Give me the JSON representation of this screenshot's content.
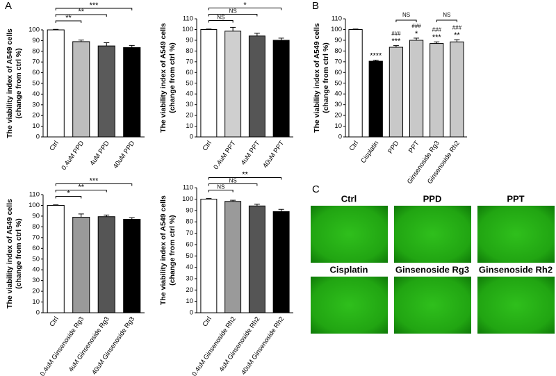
{
  "panel_labels": [
    "A",
    "B",
    "C"
  ],
  "chart_data": [
    {
      "type": "bar",
      "ylabel": [
        "The viability index of A549 cells",
        "(change from ctrl %)"
      ],
      "categories": [
        "Ctrl",
        "0.4uM PPD",
        "4uM PPD",
        "40uM PPD"
      ],
      "values": [
        100,
        89,
        85,
        83.5
      ],
      "errors": [
        0.5,
        1.5,
        3,
        2
      ],
      "colors": [
        "#ffffff",
        "#bdbdbd",
        "#5a5a5a",
        "#000000"
      ],
      "ylim": [
        0,
        100
      ],
      "yticks": [
        0,
        10,
        20,
        30,
        40,
        50,
        60,
        70,
        80,
        90,
        100
      ],
      "significance": [
        null,
        "**",
        "**",
        "***"
      ]
    },
    {
      "type": "bar",
      "ylabel": [
        "The viability index of A549 cells",
        "(change from ctrl %)"
      ],
      "categories": [
        "Ctrl",
        "0.4uM PPT",
        "4uM PPT",
        "40uM PPT"
      ],
      "values": [
        100,
        98.5,
        94,
        90
      ],
      "errors": [
        0.5,
        3.5,
        2.5,
        2
      ],
      "colors": [
        "#ffffff",
        "#cfcfcf",
        "#555555",
        "#000000"
      ],
      "ylim": [
        0,
        110
      ],
      "yticks": [
        0,
        10,
        20,
        30,
        40,
        50,
        60,
        70,
        80,
        90,
        100,
        110
      ],
      "significance": [
        null,
        "NS",
        "NS",
        "*"
      ]
    },
    {
      "type": "bar",
      "ylabel": [
        "The viability index of A549 cells",
        "(change from ctrl %)"
      ],
      "categories": [
        "Ctrl",
        "Cisplatin",
        "PPD",
        "PPT",
        "Ginsenoside Rg3",
        "Ginsenoside Rh2"
      ],
      "values": [
        100,
        70.5,
        83.5,
        90,
        87,
        88.5
      ],
      "errors": [
        0.5,
        1,
        1.5,
        2,
        1.5,
        2
      ],
      "colors": [
        "#ffffff",
        "#000000",
        "#c8c8c8",
        "#c8c8c8",
        "#c8c8c8",
        "#c8c8c8"
      ],
      "ylim": [
        0,
        110
      ],
      "yticks": [
        0,
        10,
        20,
        30,
        40,
        50,
        60,
        70,
        80,
        90,
        100,
        110
      ],
      "significance": [
        null,
        "****",
        "***",
        "*",
        "***",
        "**"
      ],
      "significance_vs_cisplatin": [
        null,
        null,
        "###",
        "###",
        "###",
        "###"
      ],
      "pair_labels": [
        "NS",
        "NS"
      ]
    },
    {
      "type": "bar",
      "ylabel": [
        "The viability index of A549 cells",
        "(change from ctrl %)"
      ],
      "categories": [
        "Ctrl",
        "0.4uM Ginsenoside Rg3",
        "4uM Ginsenoside Rg3",
        "40uM Ginsenoside Rg3"
      ],
      "values": [
        100,
        89,
        89.5,
        87
      ],
      "errors": [
        0.5,
        3,
        1.5,
        1.5
      ],
      "colors": [
        "#ffffff",
        "#9a9a9a",
        "#555555",
        "#000000"
      ],
      "ylim": [
        0,
        110
      ],
      "yticks": [
        0,
        10,
        20,
        30,
        40,
        50,
        60,
        70,
        80,
        90,
        100,
        110
      ],
      "significance": [
        null,
        "*",
        "**",
        "***"
      ]
    },
    {
      "type": "bar",
      "ylabel": [
        "The viability index of A549 cells",
        "(change from ctrl %)"
      ],
      "categories": [
        "Ctrl",
        "0.4uM Ginsenoside Rh2",
        "4uM Ginsenoside Rh2",
        "40uM Ginsenoside Rh2"
      ],
      "values": [
        100,
        98,
        94,
        89
      ],
      "errors": [
        0.5,
        1,
        1.5,
        2
      ],
      "colors": [
        "#ffffff",
        "#9a9a9a",
        "#555555",
        "#000000"
      ],
      "ylim": [
        0,
        110
      ],
      "yticks": [
        0,
        10,
        20,
        30,
        40,
        50,
        60,
        70,
        80,
        90,
        100,
        110
      ],
      "significance": [
        null,
        "NS",
        "NS",
        "**"
      ]
    }
  ],
  "microscopy": {
    "labels": [
      "Ctrl",
      "PPD",
      "PPT",
      "Cisplatin",
      "Ginsenoside Rg3",
      "Ginsenoside Rh2"
    ]
  }
}
